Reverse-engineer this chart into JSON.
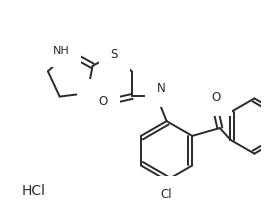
{
  "bg_color": "#ffffff",
  "line_color": "#2a2a2a",
  "line_width": 1.4,
  "font_size": 8.5,
  "hcl_label": "HCl"
}
